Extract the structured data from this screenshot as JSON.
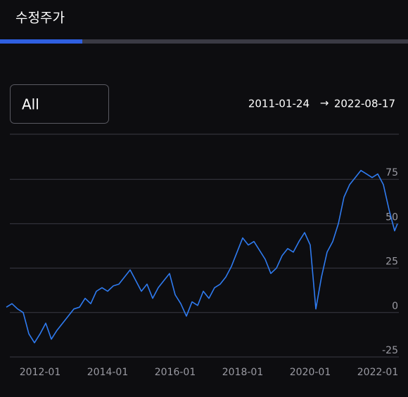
{
  "header": {
    "title": "수정주가"
  },
  "controls": {
    "range": "All",
    "start_date": "2011-01-24",
    "arrow": "→",
    "end_date": "2022-08-17"
  },
  "chart_data": {
    "type": "line",
    "x": [
      "2011-01",
      "2011-03",
      "2011-05",
      "2011-07",
      "2011-09",
      "2011-11",
      "2012-01",
      "2012-03",
      "2012-05",
      "2012-07",
      "2012-09",
      "2012-11",
      "2013-01",
      "2013-03",
      "2013-05",
      "2013-07",
      "2013-09",
      "2013-11",
      "2014-01",
      "2014-03",
      "2014-05",
      "2014-07",
      "2014-09",
      "2014-11",
      "2015-01",
      "2015-03",
      "2015-05",
      "2015-07",
      "2015-09",
      "2015-11",
      "2016-01",
      "2016-03",
      "2016-05",
      "2016-07",
      "2016-09",
      "2016-11",
      "2017-01",
      "2017-03",
      "2017-05",
      "2017-07",
      "2017-09",
      "2017-11",
      "2018-01",
      "2018-03",
      "2018-05",
      "2018-07",
      "2018-09",
      "2018-11",
      "2019-01",
      "2019-03",
      "2019-05",
      "2019-07",
      "2019-09",
      "2019-11",
      "2020-01",
      "2020-03",
      "2020-05",
      "2020-07",
      "2020-09",
      "2020-11",
      "2021-01",
      "2021-03",
      "2021-05",
      "2021-07",
      "2021-09",
      "2021-11",
      "2022-01",
      "2022-03",
      "2022-05",
      "2022-07",
      "2022-08"
    ],
    "values": [
      3,
      5,
      2,
      0,
      -12,
      -17,
      -12,
      -6,
      -15,
      -10,
      -6,
      -2,
      2,
      3,
      8,
      5,
      12,
      14,
      12,
      15,
      16,
      20,
      24,
      18,
      12,
      16,
      8,
      14,
      18,
      22,
      10,
      5,
      -2,
      6,
      4,
      12,
      8,
      14,
      16,
      20,
      26,
      34,
      42,
      38,
      40,
      35,
      30,
      22,
      25,
      32,
      36,
      34,
      40,
      45,
      38,
      2,
      20,
      34,
      40,
      50,
      65,
      72,
      76,
      80,
      78,
      76,
      78,
      72,
      58,
      46,
      50
    ],
    "color": "#2f7bf0",
    "xlim": [
      "2011-01",
      "2022-08"
    ],
    "xticks": [
      "2012-01",
      "2014-01",
      "2016-01",
      "2018-01",
      "2020-01",
      "2022-01"
    ],
    "ylim": [
      -25,
      100
    ],
    "yticks": [
      -25,
      0,
      25,
      50,
      75
    ],
    "grid": true
  }
}
